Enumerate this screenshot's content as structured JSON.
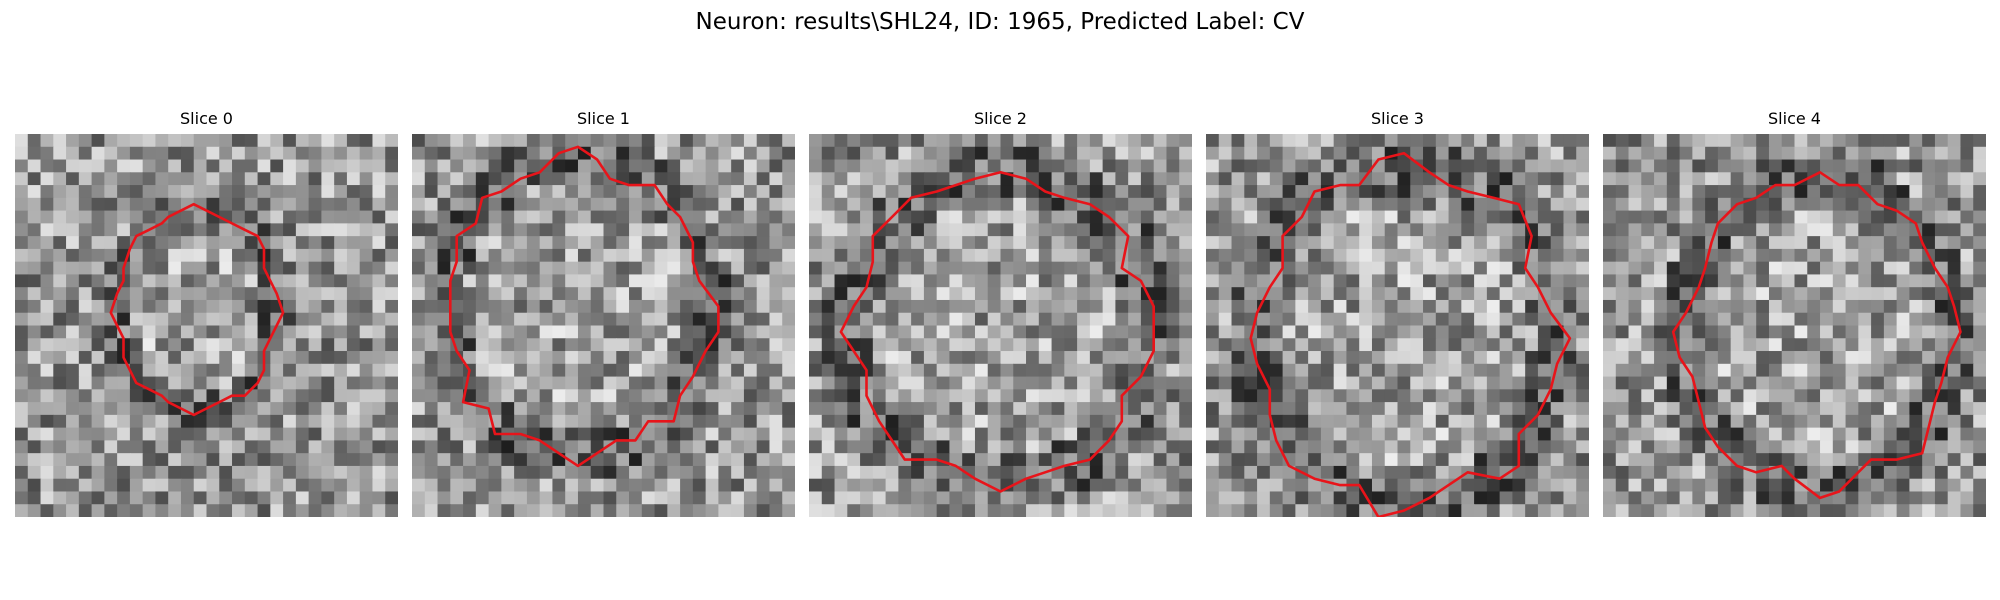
{
  "figure": {
    "title": "Neuron: results\\SHL24, ID: 1965, Predicted Label: CV"
  },
  "panels": [
    {
      "title": "Slice 0"
    },
    {
      "title": "Slice 1"
    },
    {
      "title": "Slice 2"
    },
    {
      "title": "Slice 3"
    },
    {
      "title": "Slice 4"
    }
  ],
  "colors": {
    "contour": "#e8141a",
    "background": "#ffffff"
  }
}
